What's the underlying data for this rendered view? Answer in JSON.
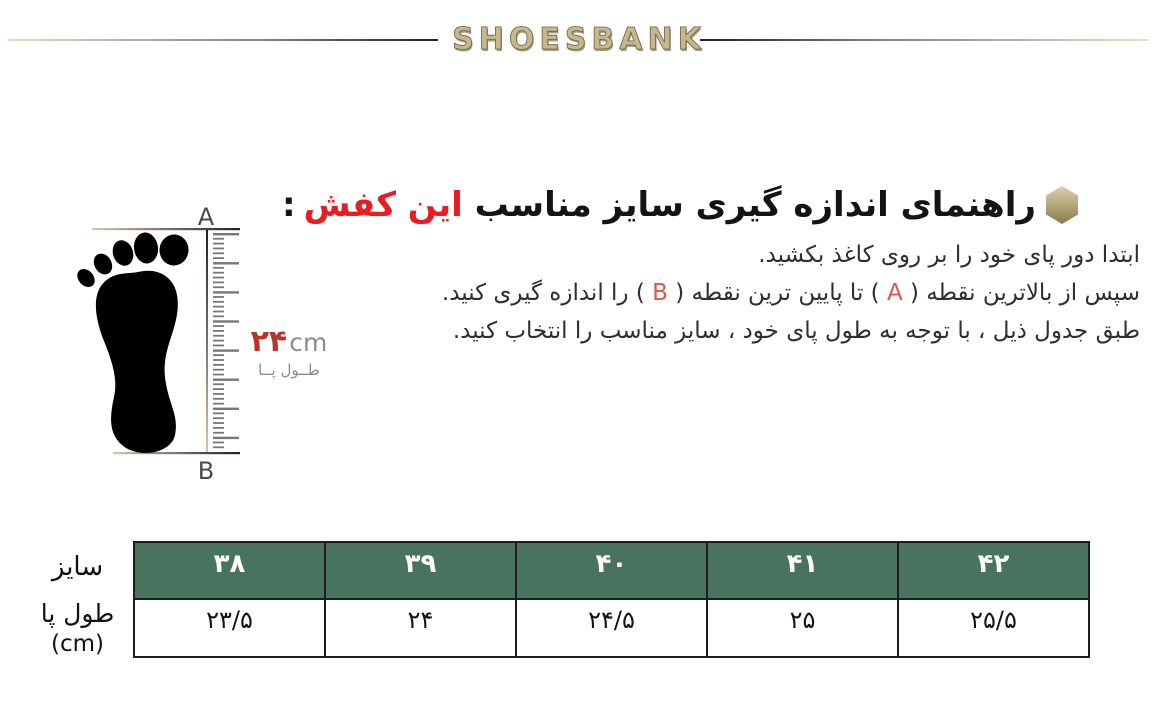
{
  "header": {
    "logo": "SHOESBANK"
  },
  "guide": {
    "title": {
      "black": "راهنمای اندازه گیری سایز مناسب",
      "red": "این کفش",
      "colon": ":"
    },
    "instructions": {
      "line1": "ابتدا دور پای خود را بر روی کاغذ بکشید.",
      "line2_pre": "سپس از بالاترین نقطه ( ",
      "line2_point_a": "A",
      "line2_mid": " ) تا پایین ترین نقطه ( ",
      "line2_point_b": "B",
      "line2_post": " ) را اندازه گیری کنید.",
      "line3": "طبق جدول ذیل ، با توجه به طول پای خود ، سایز مناسب را انتخاب کنید."
    }
  },
  "diagram": {
    "point_a": "A",
    "point_b": "B",
    "length_value": "۲۴",
    "length_unit": "cm",
    "length_label": "طــول پــا"
  },
  "size_table": {
    "row_label_size": "سایز",
    "row_label_length": "طول پا",
    "row_label_unit": "(cm)",
    "columns": [
      {
        "size": "۳۸",
        "length": "۲۳/۵"
      },
      {
        "size": "۳۹",
        "length": "۲۴"
      },
      {
        "size": "۴۰",
        "length": "۲۴/۵"
      },
      {
        "size": "۴۱",
        "length": "۲۵"
      },
      {
        "size": "۴۲",
        "length": "۲۵/۵"
      }
    ]
  },
  "colors": {
    "table_header_green": "#47735f",
    "title_red": "#ea1b23",
    "measure_red": "#b5352e",
    "point_red": "#e0564c",
    "logo_gold": "#c6b78c"
  }
}
